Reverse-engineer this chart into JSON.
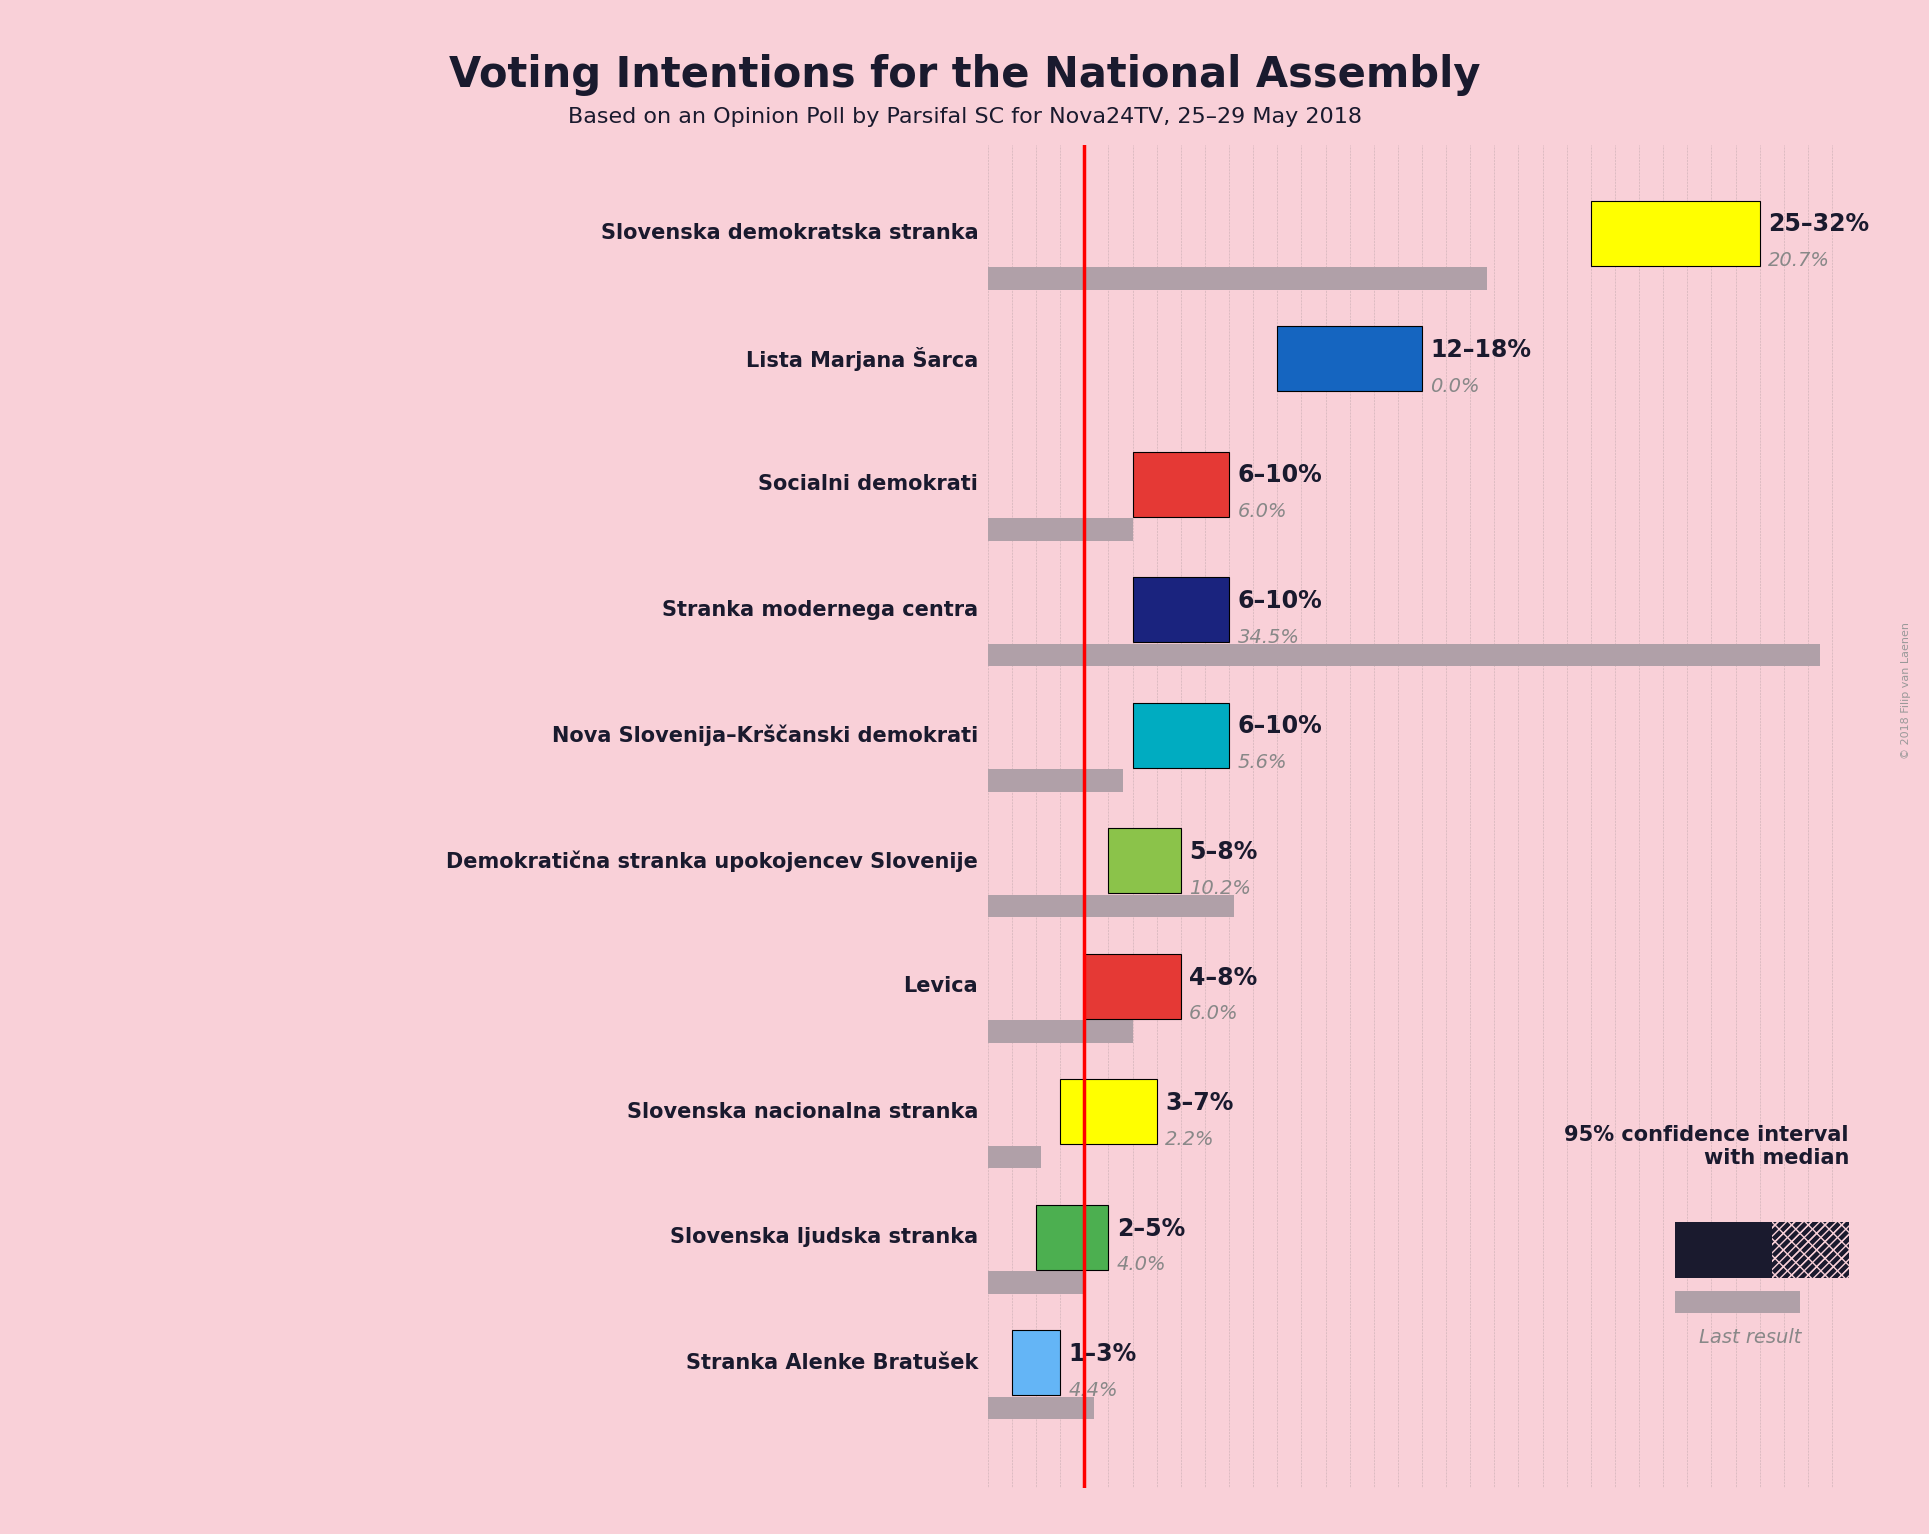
{
  "title": "Voting Intentions for the National Assembly",
  "subtitle": "Based on an Opinion Poll by Parsifal SC for Nova24TV, 25–29 May 2018",
  "copyright": "© 2018 Filip van Laenen",
  "background_color": "#f9d0d8",
  "parties": [
    {
      "name": "Slovenska demokratska stranka",
      "low": 25,
      "high": 32,
      "median": 28.5,
      "last": 20.7,
      "color": "#FFFF00",
      "label": "25–32%",
      "last_label": "20.7%"
    },
    {
      "name": "Lista Marjana Šarca",
      "low": 12,
      "high": 18,
      "median": 15,
      "last": 0.0,
      "color": "#1565c0",
      "label": "12–18%",
      "last_label": "0.0%"
    },
    {
      "name": "Socialni demokrati",
      "low": 6,
      "high": 10,
      "median": 8,
      "last": 6.0,
      "color": "#e53935",
      "label": "6–10%",
      "last_label": "6.0%"
    },
    {
      "name": "Stranka modernega centra",
      "low": 6,
      "high": 10,
      "median": 8,
      "last": 34.5,
      "color": "#1a237e",
      "label": "6–10%",
      "last_label": "34.5%"
    },
    {
      "name": "Nova Slovenija–Krščanski demokrati",
      "low": 6,
      "high": 10,
      "median": 8,
      "last": 5.6,
      "color": "#00acc1",
      "label": "6–10%",
      "last_label": "5.6%"
    },
    {
      "name": "Demokratična stranka upokojencev Slovenije",
      "low": 5,
      "high": 8,
      "median": 6.5,
      "last": 10.2,
      "color": "#8bc34a",
      "label": "5–8%",
      "last_label": "10.2%"
    },
    {
      "name": "Levica",
      "low": 4,
      "high": 8,
      "median": 6,
      "last": 6.0,
      "color": "#e53935",
      "label": "4–8%",
      "last_label": "6.0%"
    },
    {
      "name": "Slovenska nacionalna stranka",
      "low": 3,
      "high": 7,
      "median": 5,
      "last": 2.2,
      "color": "#FFFF00",
      "label": "3–7%",
      "last_label": "2.2%"
    },
    {
      "name": "Slovenska ljudska stranka",
      "low": 2,
      "high": 5,
      "median": 3.5,
      "last": 4.0,
      "color": "#4caf50",
      "label": "2–5%",
      "last_label": "4.0%"
    },
    {
      "name": "Stranka Alenke Bratušek",
      "low": 1,
      "high": 3,
      "median": 2,
      "last": 4.4,
      "color": "#64b5f6",
      "label": "1–3%",
      "last_label": "4.4%"
    }
  ],
  "xlim_max": 36,
  "red_line_x": 4.0,
  "last_color": "#b0a0a8",
  "dark_color": "#1a1a2e"
}
